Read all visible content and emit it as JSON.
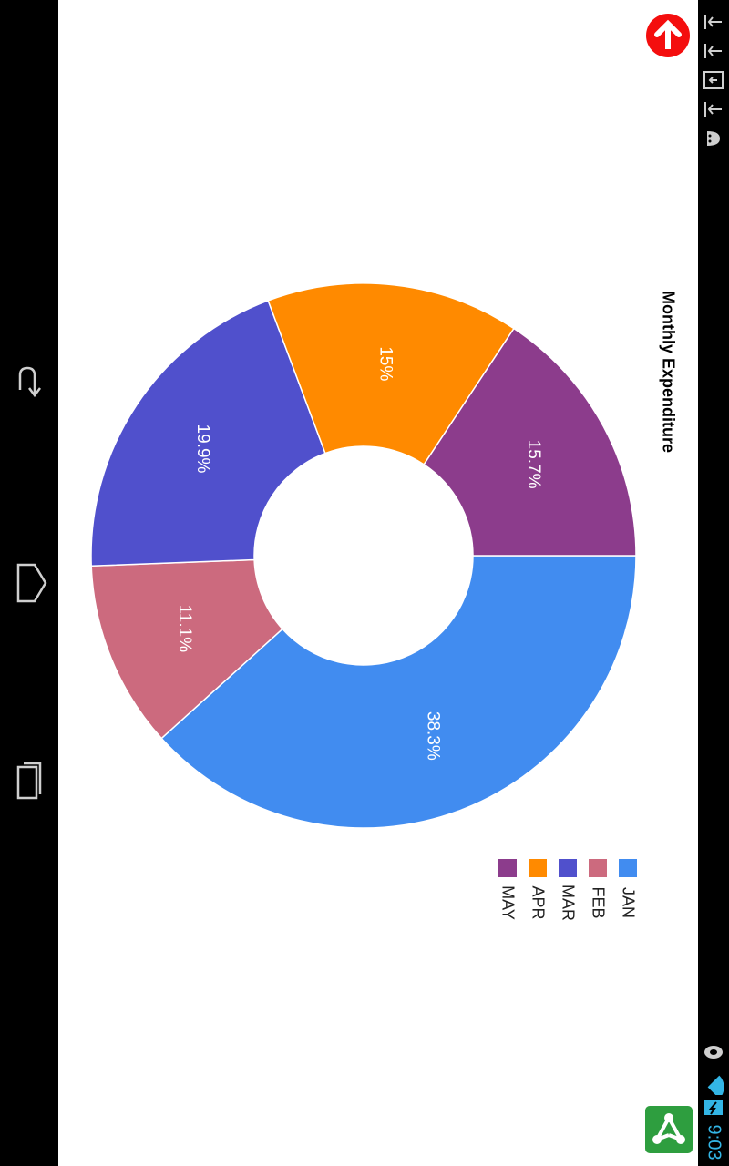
{
  "status_bar": {
    "time": "9:03",
    "icons": [
      "usb-icon",
      "usb-icon",
      "download-icon",
      "usb-icon",
      "android-debug-icon",
      "bluetooth-icon",
      "wifi-icon",
      "battery-charging-icon"
    ]
  },
  "nav_bar": {
    "buttons": [
      "back-icon",
      "home-icon",
      "recent-apps-icon"
    ]
  },
  "colors": {
    "JAN": "#418cf0",
    "FEB": "#cc6a7e",
    "MAR": "#5050cc",
    "APR": "#ff8a00",
    "MAY": "#8c3c8c",
    "accent_red": "#f40e0e",
    "launcher_green": "#2e9e3f"
  },
  "chart_data": {
    "type": "pie",
    "title": "Monthly Expenditure",
    "donut": true,
    "categories": [
      "JAN",
      "FEB",
      "MAR",
      "APR",
      "MAY"
    ],
    "values": [
      38.3,
      11.1,
      19.9,
      15,
      15.7
    ],
    "labels": [
      "38.3%",
      "11.1%",
      "19.9%",
      "15%",
      "15.7%"
    ],
    "legend": [
      "JAN",
      "FEB",
      "MAR",
      "APR",
      "MAY"
    ],
    "legend_position": "bottom"
  }
}
